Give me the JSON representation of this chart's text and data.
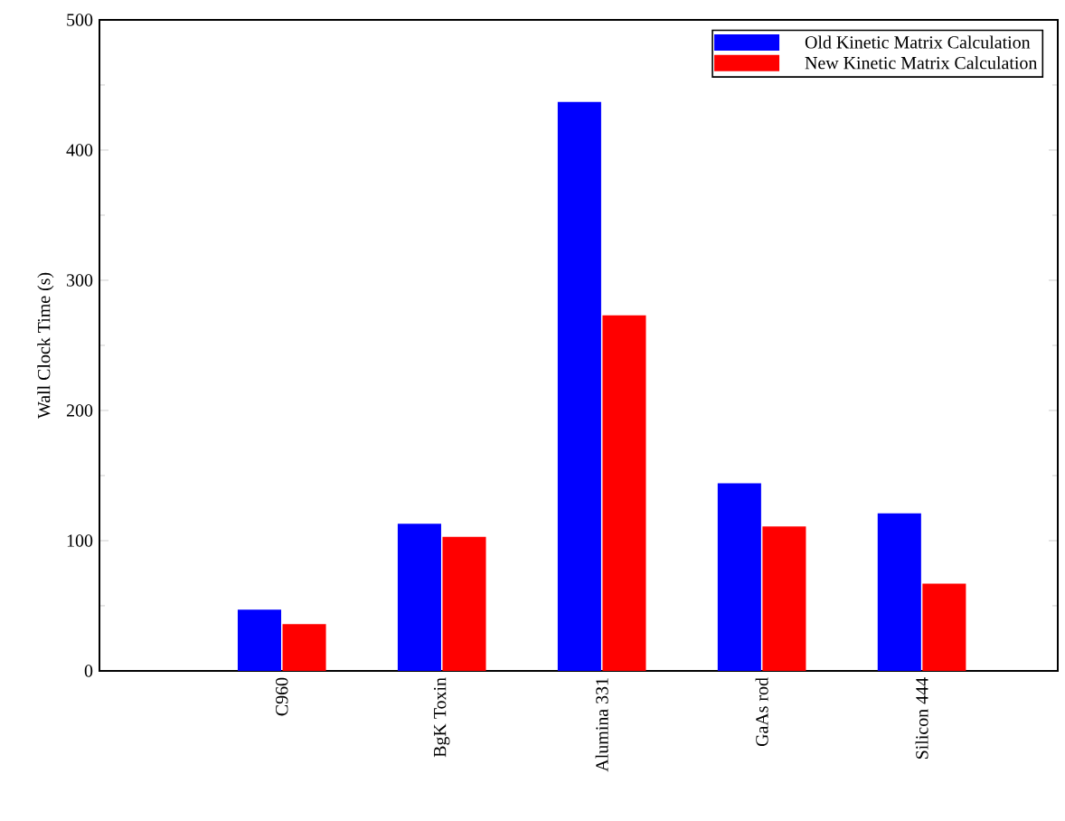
{
  "chart_data": {
    "type": "bar",
    "ylabel": "Wall Clock Time (s)",
    "categories": [
      "C960",
      "BgK Toxin",
      "Alumina 331",
      "GaAs rod",
      "Silicon 444"
    ],
    "series": [
      {
        "name": "Old Kinetic Matrix Calculation",
        "color": "#0000ff",
        "values": [
          47,
          113,
          437,
          144,
          121
        ]
      },
      {
        "name": "New Kinetic Matrix Calculation",
        "color": "#ff0000",
        "values": [
          36,
          103,
          273,
          111,
          67
        ]
      }
    ],
    "ylim": [
      0,
      500
    ],
    "yticks": [
      0,
      100,
      200,
      300,
      400,
      500
    ],
    "grid": false,
    "legend": "top right"
  }
}
